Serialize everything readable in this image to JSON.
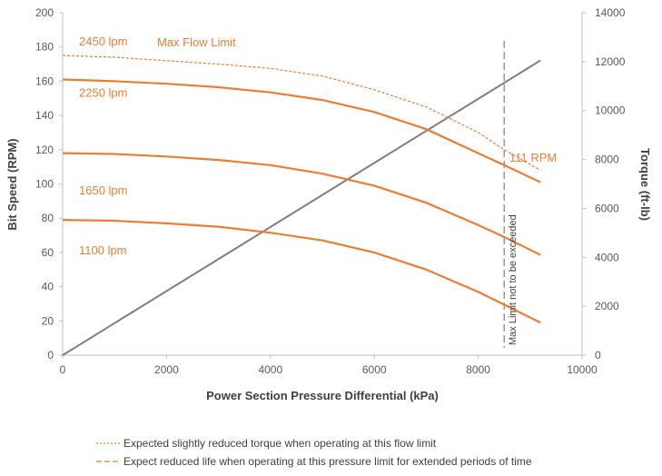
{
  "chart_data": {
    "type": "line",
    "title": "",
    "xlabel": "Power Section Pressure Differential (kPa)",
    "ylabel": "Bit Speed (RPM)",
    "y2label": "Torque (ft-lb)",
    "xlim": [
      0,
      10000
    ],
    "ylim": [
      0,
      200
    ],
    "y2lim": [
      0,
      14000
    ],
    "xticks": [
      "0",
      "2000",
      "4000",
      "6000",
      "8000",
      "10000"
    ],
    "yticks": [
      "0",
      "20",
      "40",
      "60",
      "80",
      "100",
      "120",
      "140",
      "160",
      "180",
      "200"
    ],
    "y2ticks": [
      "0",
      "2000",
      "4000",
      "6000",
      "8000",
      "10000",
      "12000",
      "14000"
    ],
    "grid": false,
    "colors": {
      "speed": "#ED7D31",
      "torque": "#7F7F7F",
      "limit": "#7F7F7F",
      "axis": "#BFBFBF"
    },
    "speed_series": [
      {
        "name": "2450 lpm",
        "dashed": true,
        "points": [
          [
            0,
            175
          ],
          [
            1000,
            174
          ],
          [
            2000,
            172
          ],
          [
            3000,
            170
          ],
          [
            4000,
            167.5
          ],
          [
            5000,
            163
          ],
          [
            6000,
            155
          ],
          [
            7000,
            145
          ],
          [
            8000,
            130
          ],
          [
            8500,
            120
          ],
          [
            9200,
            108
          ]
        ]
      },
      {
        "name": "2250 lpm",
        "dashed": false,
        "points": [
          [
            0,
            161
          ],
          [
            1000,
            160
          ],
          [
            2000,
            158.5
          ],
          [
            3000,
            156.5
          ],
          [
            4000,
            153.5
          ],
          [
            5000,
            149
          ],
          [
            6000,
            142
          ],
          [
            7000,
            132
          ],
          [
            8000,
            118
          ],
          [
            8500,
            111
          ],
          [
            9200,
            101
          ]
        ]
      },
      {
        "name": "1650 lpm",
        "dashed": false,
        "points": [
          [
            0,
            118
          ],
          [
            1000,
            117.5
          ],
          [
            2000,
            116
          ],
          [
            3000,
            114
          ],
          [
            4000,
            111
          ],
          [
            5000,
            106
          ],
          [
            6000,
            99
          ],
          [
            7000,
            89
          ],
          [
            8000,
            76
          ],
          [
            8500,
            69
          ],
          [
            9200,
            58.5
          ]
        ]
      },
      {
        "name": "1100 lpm",
        "dashed": false,
        "points": [
          [
            0,
            79
          ],
          [
            1000,
            78.5
          ],
          [
            2000,
            77
          ],
          [
            3000,
            75
          ],
          [
            4000,
            71.5
          ],
          [
            5000,
            67
          ],
          [
            6000,
            60
          ],
          [
            7000,
            50
          ],
          [
            8000,
            37
          ],
          [
            8500,
            29.5
          ],
          [
            9200,
            19
          ]
        ]
      }
    ],
    "torque_series": {
      "name": "Torque",
      "points": [
        [
          0,
          0
        ],
        [
          9200,
          12050
        ]
      ]
    },
    "pressure_limit": {
      "x": 8500,
      "label": "Max Limit not to be exceeded"
    },
    "annotations": {
      "max_flow": "Max Flow Limit",
      "rpm_111": "111 RPM"
    },
    "legend": [
      {
        "style": "dotted",
        "text": "Expected slightly reduced torque when operating at this flow limit"
      },
      {
        "style": "dashed",
        "text": "Expect reduced life when operating at this pressure limit for extended periods of time"
      }
    ]
  }
}
